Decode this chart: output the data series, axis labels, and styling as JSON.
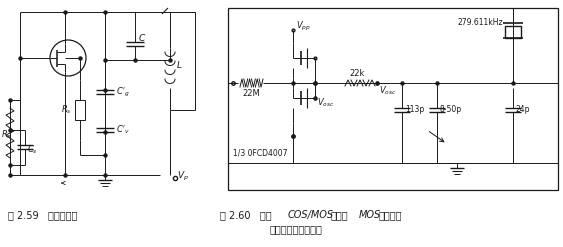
{
  "fig_width": 5.63,
  "fig_height": 2.47,
  "dpi": 100,
  "bg_color": "#ffffff",
  "black": "#1a1a1a",
  "caption1": "图 2.59   谐波振荡器",
  "caption2_line1_pre": "图 2.60   使用",
  "caption2_italic1": "COS/MOS",
  "caption2_mid": "（互补",
  "caption2_italic2": "MOS",
  "caption2_post": "）倒相器",
  "caption2_line2": "的微功耗晶体振荡器"
}
